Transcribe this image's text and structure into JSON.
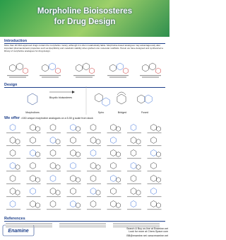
{
  "header": {
    "title_line1": "Morpholine Bioisosteres",
    "title_line2": "for Drug Design"
  },
  "introduction": {
    "heading": "Introduction",
    "text": "More than 20 FDA-approved drugs contain the morpholine moiety, although it is often metabolically labile. Morpholine-based analogues may advantageously alter important pharmacokinetic properties such as lipophilicity and metabolic stability when grafted onto molecular scaffolds. Herein we have designed and synthesized a library of morpholine analogues for drug design."
  },
  "design": {
    "heading": "Design",
    "left_label": "Morpholines",
    "arrow_label": "Bicyclic bioisosteres",
    "types": [
      "Spiro",
      "Bridged",
      "Fused"
    ]
  },
  "offer": {
    "heading": "We offer",
    "text": ">150 unique morpholine analogues on a 5-50 g scale from stock"
  },
  "references": {
    "heading": "References"
  },
  "footer": {
    "line1": "Search & Buy on-line at Enamine.net",
    "line2": "Look for more at Chem-Space.com",
    "line3": "BB@enamine.net; www.enamine.net",
    "logo": "Enamine"
  }
}
